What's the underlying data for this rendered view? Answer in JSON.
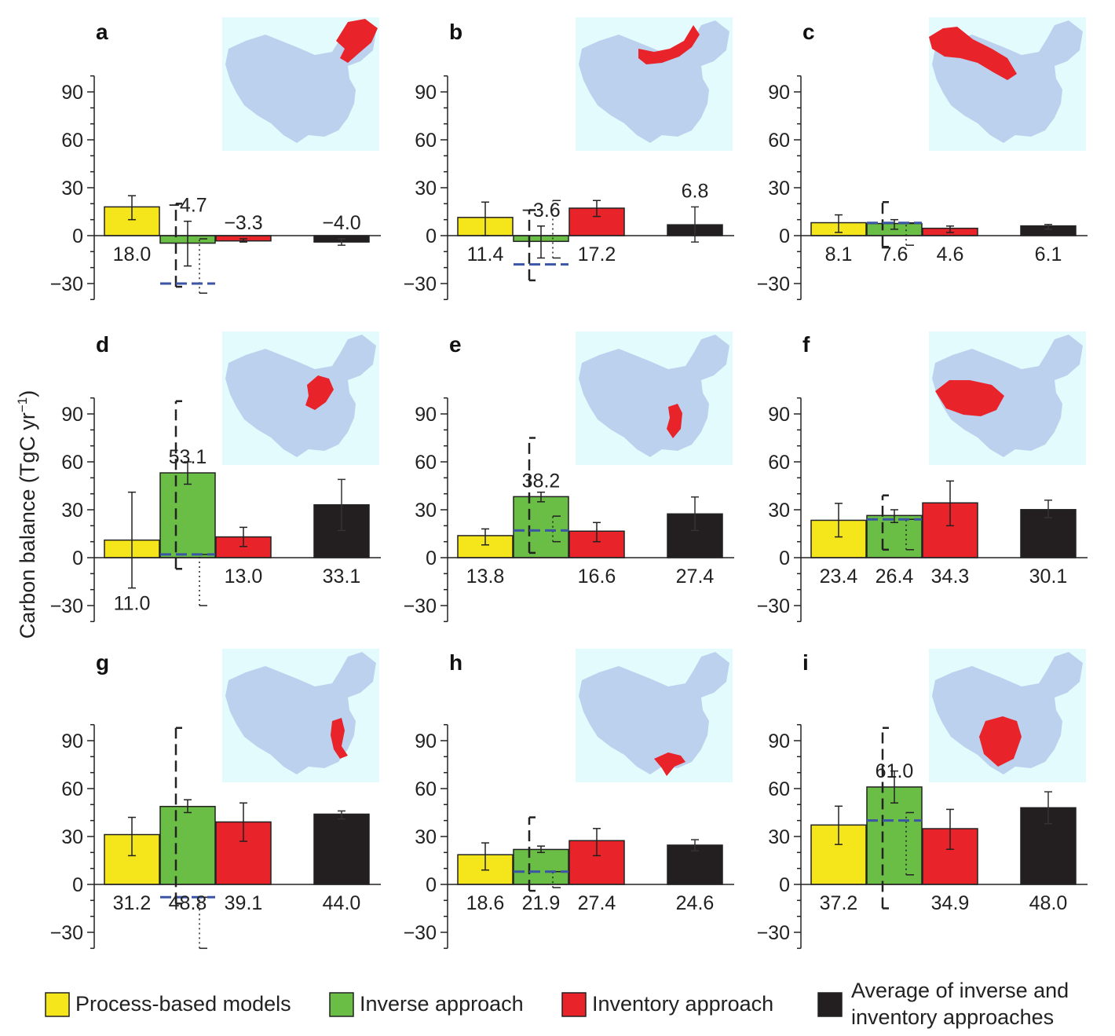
{
  "chart_data": {
    "type": "bar",
    "ylabel": "Carbon balance (TgC yr",
    "ylabel_sup": "−1",
    "ylabel_tail": ")",
    "yticks": [
      "90",
      "60",
      "30",
      "0",
      "−30"
    ],
    "ytick_values": [
      90,
      60,
      30,
      0,
      -30
    ],
    "ylim": [
      -40,
      100
    ],
    "categories": [
      "Process-based models",
      "Inverse approach",
      "Inventory approach",
      "Average of inverse and inventory approaches"
    ],
    "colors": [
      "#f5e61c",
      "#6abd45",
      "#e8232a",
      "#231f20"
    ],
    "panels": [
      {
        "letter": "a",
        "labels": [
          "18.0",
          "−4.7",
          "−3.3",
          "−4.0"
        ],
        "values": [
          18.0,
          -4.7,
          -3.3,
          -4.0
        ],
        "err": [
          [
            10,
            25
          ],
          [
            -19,
            9
          ],
          [
            -4,
            -2
          ],
          [
            -6,
            -2
          ]
        ],
        "dashed_range": [
          -32,
          20
        ],
        "dotted_range": [
          -36,
          -2
        ],
        "blue_dash": -30
      },
      {
        "letter": "b",
        "labels": [
          "11.4",
          "−3.6",
          "17.2",
          "6.8"
        ],
        "values": [
          11.4,
          -3.6,
          17.2,
          6.8
        ],
        "err": [
          [
            0,
            21
          ],
          [
            -14,
            6
          ],
          [
            12,
            22
          ],
          [
            -4,
            18
          ]
        ],
        "dashed_range": [
          -28,
          16
        ],
        "dotted_range": [
          -14,
          22
        ],
        "blue_dash": -18
      },
      {
        "letter": "c",
        "labels": [
          "8.1",
          "7.6",
          "4.6",
          "6.1"
        ],
        "values": [
          8.1,
          7.6,
          4.6,
          6.1
        ],
        "err": [
          [
            2,
            13
          ],
          [
            4,
            10
          ],
          [
            2,
            6
          ],
          [
            4,
            7
          ]
        ],
        "dashed_range": [
          -7,
          21
        ],
        "dotted_range": [
          -6,
          8
        ],
        "blue_dash": 8
      },
      {
        "letter": "d",
        "labels": [
          "11.0",
          "53.1",
          "13.0",
          "33.1"
        ],
        "values": [
          11.0,
          53.1,
          13.0,
          33.1
        ],
        "err": [
          [
            -19,
            41
          ],
          [
            46,
            60
          ],
          [
            7,
            19
          ],
          [
            17,
            49
          ]
        ],
        "dashed_range": [
          -7,
          98
        ],
        "dotted_range": [
          -30,
          2
        ],
        "blue_dash": 2
      },
      {
        "letter": "e",
        "labels": [
          "13.8",
          "38.2",
          "16.6",
          "27.4"
        ],
        "values": [
          13.8,
          38.2,
          16.6,
          27.4
        ],
        "err": [
          [
            8,
            18
          ],
          [
            35,
            41
          ],
          [
            10,
            22
          ],
          [
            17,
            38
          ]
        ],
        "dashed_range": [
          3,
          75
        ],
        "dotted_range": [
          10,
          26
        ],
        "blue_dash": 17
      },
      {
        "letter": "f",
        "labels": [
          "23.4",
          "26.4",
          "34.3",
          "30.1"
        ],
        "values": [
          23.4,
          26.4,
          34.3,
          30.1
        ],
        "err": [
          [
            13,
            34
          ],
          [
            22,
            30
          ],
          [
            20,
            48
          ],
          [
            25,
            36
          ]
        ],
        "dashed_range": [
          5,
          39
        ],
        "dotted_range": [
          5,
          24
        ],
        "blue_dash": 24
      },
      {
        "letter": "g",
        "labels": [
          "31.2",
          "48.8",
          "39.1",
          "44.0"
        ],
        "values": [
          31.2,
          48.8,
          39.1,
          44.0
        ],
        "err": [
          [
            18,
            42
          ],
          [
            45,
            53
          ],
          [
            27,
            51
          ],
          [
            41,
            46
          ]
        ],
        "dashed_range": [
          -12,
          98
        ],
        "dotted_range": [
          -40,
          -8
        ],
        "blue_dash": -8
      },
      {
        "letter": "h",
        "labels": [
          "18.6",
          "21.9",
          "27.4",
          "24.6"
        ],
        "values": [
          18.6,
          21.9,
          27.4,
          24.6
        ],
        "err": [
          [
            9,
            26
          ],
          [
            20,
            24
          ],
          [
            18,
            35
          ],
          [
            21,
            28
          ]
        ],
        "dashed_range": [
          -4,
          42
        ],
        "dotted_range": [
          -2,
          8
        ],
        "blue_dash": 8
      },
      {
        "letter": "i",
        "labels": [
          "37.2",
          "61.0",
          "34.9",
          "48.0"
        ],
        "values": [
          37.2,
          61.0,
          34.9,
          48.0
        ],
        "err": [
          [
            25,
            49
          ],
          [
            51,
            71
          ],
          [
            22,
            47
          ],
          [
            38,
            58
          ]
        ],
        "dashed_range": [
          -15,
          98
        ],
        "dotted_range": [
          6,
          45
        ],
        "blue_dash": 40
      }
    ]
  },
  "legend": [
    {
      "label": "Process-based models",
      "color": "#f5e61c"
    },
    {
      "label": "Inverse approach",
      "color": "#6abd45"
    },
    {
      "label": "Inventory approach",
      "color": "#e8232a"
    },
    {
      "label": "Average of inverse and",
      "label2": "inventory approaches",
      "color": "#231f20"
    }
  ],
  "map_colors": {
    "sea": "#e4fbfd",
    "land": "#bcd1ee",
    "highlight": "#e8232a"
  }
}
